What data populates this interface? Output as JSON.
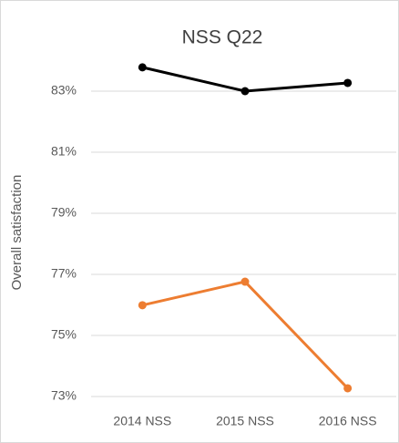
{
  "chart_data": {
    "type": "line",
    "title": "NSS Q22",
    "y_label": "Overall satisfaction",
    "categories": [
      "2014 NSS",
      "2015 NSS",
      "2016 NSS"
    ],
    "series": [
      {
        "color": "#000000",
        "values": [
          83.78,
          83.0,
          83.27
        ]
      },
      {
        "color": "#ed7d31",
        "values": [
          75.99,
          76.76,
          73.27
        ]
      }
    ],
    "ylim": [
      73,
      84
    ],
    "yticks": [
      {
        "value": 73,
        "label": "73%"
      },
      {
        "value": 75,
        "label": "75%"
      },
      {
        "value": 77,
        "label": "77%"
      },
      {
        "value": 79,
        "label": "79%"
      },
      {
        "value": 81,
        "label": "81%"
      },
      {
        "value": 83,
        "label": "83%"
      }
    ],
    "grid": true
  }
}
